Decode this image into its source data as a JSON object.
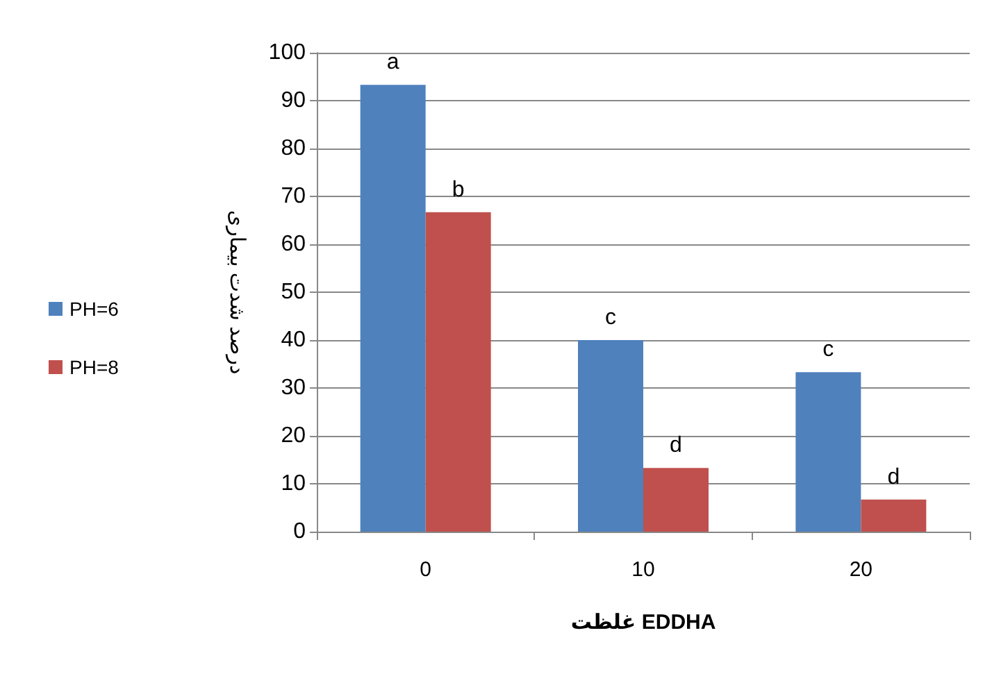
{
  "chart_data": {
    "type": "bar",
    "categories": [
      "0",
      "10",
      "20"
    ],
    "series": [
      {
        "name": "PH=6",
        "color": "#4f81bd",
        "values": [
          93.3,
          40,
          33.3
        ]
      },
      {
        "name": "PH=8",
        "color": "#c0504d",
        "values": [
          66.7,
          13.3,
          6.7
        ]
      }
    ],
    "xlabel": "غلظت EDDHA",
    "ylabel": "درصد شدت بیماری",
    "ylim": [
      0,
      100
    ],
    "yticks": [
      0,
      10,
      20,
      30,
      40,
      50,
      60,
      70,
      80,
      90,
      100
    ],
    "grid": "y",
    "legend": "left",
    "annotations": [
      {
        "text": "a",
        "x": "0",
        "y": 93.3
      },
      {
        "text": "b",
        "x": "0",
        "y": 66.7
      },
      {
        "text": "c",
        "x": "10",
        "y": 40
      },
      {
        "text": "d",
        "x": "10",
        "y": 13.3
      },
      {
        "text": "c",
        "x": "20",
        "y": 33.3
      },
      {
        "text": "d",
        "x": "20",
        "y": 6.7
      }
    ]
  }
}
